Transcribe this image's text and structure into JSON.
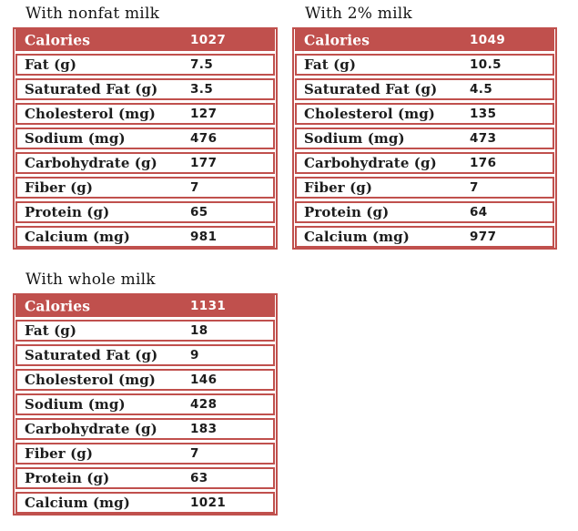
{
  "page": {
    "background": "#ffffff"
  },
  "colors": {
    "accent_red": "#c0504d",
    "header_text": "#ffffff",
    "body_text": "#1c1c1c",
    "title_text": "#151515"
  },
  "chart_data": [
    {
      "type": "table",
      "title": "With nonfat milk",
      "rows": [
        [
          "Calories",
          "1027"
        ],
        [
          "Fat (g)",
          "7.5"
        ],
        [
          "Saturated Fat (g)",
          "3.5"
        ],
        [
          "Cholesterol (mg)",
          "127"
        ],
        [
          "Sodium (mg)",
          "476"
        ],
        [
          "Carbohydrate (g)",
          "177"
        ],
        [
          "Fiber (g)",
          "7"
        ],
        [
          "Protein (g)",
          "65"
        ],
        [
          "Calcium (mg)",
          "981"
        ]
      ]
    },
    {
      "type": "table",
      "title": "With 2% milk",
      "rows": [
        [
          "Calories",
          "1049"
        ],
        [
          "Fat (g)",
          "10.5"
        ],
        [
          "Saturated Fat (g)",
          "4.5"
        ],
        [
          "Cholesterol (mg)",
          "135"
        ],
        [
          "Sodium (mg)",
          "473"
        ],
        [
          "Carbohydrate (g)",
          "176"
        ],
        [
          "Fiber (g)",
          "7"
        ],
        [
          "Protein (g)",
          "64"
        ],
        [
          "Calcium (mg)",
          "977"
        ]
      ]
    },
    {
      "type": "table",
      "title": "With whole milk",
      "rows": [
        [
          "Calories",
          "1131"
        ],
        [
          "Fat (g)",
          "18"
        ],
        [
          "Saturated Fat (g)",
          "9"
        ],
        [
          "Cholesterol (mg)",
          "146"
        ],
        [
          "Sodium (mg)",
          "428"
        ],
        [
          "Carbohydrate (g)",
          "183"
        ],
        [
          "Fiber (g)",
          "7"
        ],
        [
          "Protein (g)",
          "63"
        ],
        [
          "Calcium (mg)",
          "1021"
        ]
      ]
    }
  ]
}
